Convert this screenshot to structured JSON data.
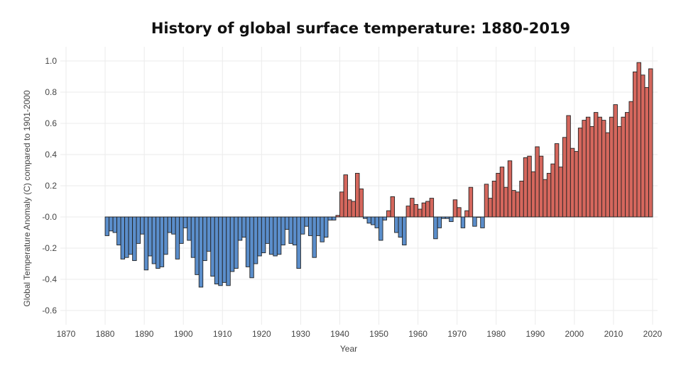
{
  "chart_data": {
    "type": "bar",
    "title": "History of global surface temperature: 1880-2019",
    "xlabel": "Year",
    "ylabel": "Global Temperature Anomaly (C) compared to 1901-2000",
    "xlim": [
      1870,
      2020
    ],
    "ylim": [
      -0.6,
      1.0
    ],
    "x_ticks": [
      "1870",
      "1880",
      "1890",
      "1900",
      "1910",
      "1920",
      "1930",
      "1940",
      "1950",
      "1960",
      "1970",
      "1980",
      "1990",
      "2000",
      "2010",
      "2020"
    ],
    "y_ticks": [
      "1.0",
      "0.8",
      "0.6",
      "0.4",
      "0.2",
      "-0.0",
      "-0.2",
      "-0.4",
      "-0.6"
    ],
    "grid": true,
    "colors": {
      "negative": "#5b8ecb",
      "positive": "#d5675d",
      "outline": "#222222"
    },
    "start_year": 1880,
    "values": [
      -0.12,
      -0.09,
      -0.1,
      -0.18,
      -0.27,
      -0.26,
      -0.24,
      -0.28,
      -0.17,
      -0.11,
      -0.34,
      -0.25,
      -0.3,
      -0.33,
      -0.32,
      -0.24,
      -0.1,
      -0.11,
      -0.27,
      -0.17,
      -0.07,
      -0.15,
      -0.26,
      -0.37,
      -0.45,
      -0.28,
      -0.22,
      -0.38,
      -0.43,
      -0.44,
      -0.42,
      -0.44,
      -0.35,
      -0.33,
      -0.15,
      -0.13,
      -0.32,
      -0.39,
      -0.3,
      -0.25,
      -0.23,
      -0.17,
      -0.24,
      -0.25,
      -0.24,
      -0.18,
      -0.08,
      -0.17,
      -0.18,
      -0.33,
      -0.11,
      -0.06,
      -0.12,
      -0.26,
      -0.12,
      -0.16,
      -0.13,
      -0.02,
      -0.02,
      0.01,
      0.16,
      0.27,
      0.11,
      0.1,
      0.28,
      0.18,
      -0.01,
      -0.04,
      -0.05,
      -0.07,
      -0.15,
      -0.02,
      0.04,
      0.13,
      -0.1,
      -0.13,
      -0.18,
      0.07,
      0.12,
      0.08,
      0.05,
      0.09,
      0.1,
      0.12,
      -0.14,
      -0.07,
      -0.01,
      -0.01,
      -0.03,
      0.11,
      0.06,
      -0.07,
      0.04,
      0.19,
      -0.06,
      0.0,
      -0.07,
      0.21,
      0.12,
      0.23,
      0.28,
      0.32,
      0.19,
      0.36,
      0.17,
      0.16,
      0.23,
      0.38,
      0.39,
      0.29,
      0.45,
      0.39,
      0.24,
      0.28,
      0.34,
      0.47,
      0.32,
      0.51,
      0.65,
      0.44,
      0.42,
      0.57,
      0.62,
      0.64,
      0.58,
      0.67,
      0.64,
      0.62,
      0.54,
      0.64,
      0.72,
      0.58,
      0.64,
      0.67,
      0.74,
      0.93,
      0.99,
      0.91,
      0.83,
      0.95
    ]
  }
}
